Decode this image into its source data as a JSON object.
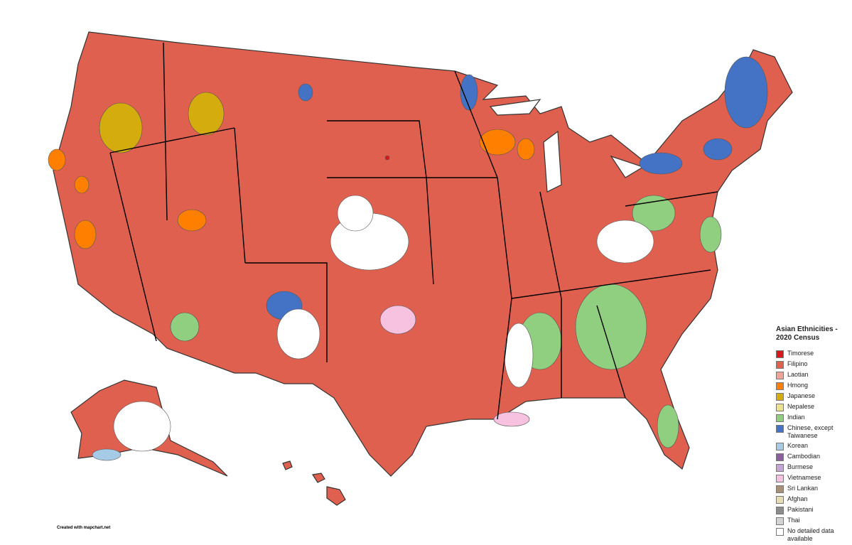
{
  "legend": {
    "title": "Asian Ethnicities - 2020 Census",
    "items": [
      {
        "label": "Timorese",
        "color": "#d7191c"
      },
      {
        "label": "Filipino",
        "color": "#e0604f"
      },
      {
        "label": "Laotian",
        "color": "#f4a19a"
      },
      {
        "label": "Hmong",
        "color": "#ff8000"
      },
      {
        "label": "Japanese",
        "color": "#d4ac0d"
      },
      {
        "label": "Nepalese",
        "color": "#ebe38f"
      },
      {
        "label": "Indian",
        "color": "#8fcf7f"
      },
      {
        "label": "Chinese, except Taiwanese",
        "color": "#4472c4"
      },
      {
        "label": "Korean",
        "color": "#a6cbe6"
      },
      {
        "label": "Cambodian",
        "color": "#8e5ea2"
      },
      {
        "label": "Burmese",
        "color": "#c3a6d6"
      },
      {
        "label": "Vietnamese",
        "color": "#f7c1e0"
      },
      {
        "label": "Sri Lankan",
        "color": "#a89078"
      },
      {
        "label": "Afghan",
        "color": "#e6ddb8"
      },
      {
        "label": "Pakistani",
        "color": "#8c8c8c"
      },
      {
        "label": "Thai",
        "color": "#d3d3d3"
      },
      {
        "label": "No detailed data available",
        "color": "#ffffff"
      }
    ]
  },
  "credit": "Created with mapchart.net"
}
